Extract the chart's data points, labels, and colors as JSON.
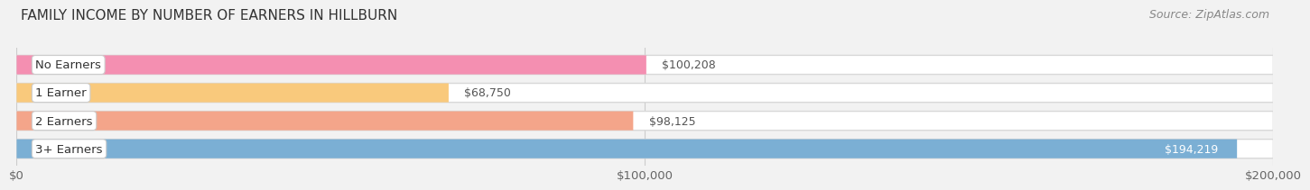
{
  "title": "FAMILY INCOME BY NUMBER OF EARNERS IN HILLBURN",
  "source": "Source: ZipAtlas.com",
  "categories": [
    "No Earners",
    "1 Earner",
    "2 Earners",
    "3+ Earners"
  ],
  "values": [
    100208,
    68750,
    98125,
    194219
  ],
  "bar_colors": [
    "#f48fb1",
    "#f9c97c",
    "#f4a58a",
    "#7bafd4"
  ],
  "label_colors": [
    "#555555",
    "#555555",
    "#555555",
    "#ffffff"
  ],
  "xlim": [
    0,
    200000
  ],
  "xticks": [
    0,
    100000,
    200000
  ],
  "xtick_labels": [
    "$0",
    "$100,000",
    "$200,000"
  ],
  "background_color": "#f2f2f2",
  "bar_background_color": "#efefef",
  "title_fontsize": 11,
  "label_fontsize": 9.5,
  "value_fontsize": 9,
  "source_fontsize": 9
}
